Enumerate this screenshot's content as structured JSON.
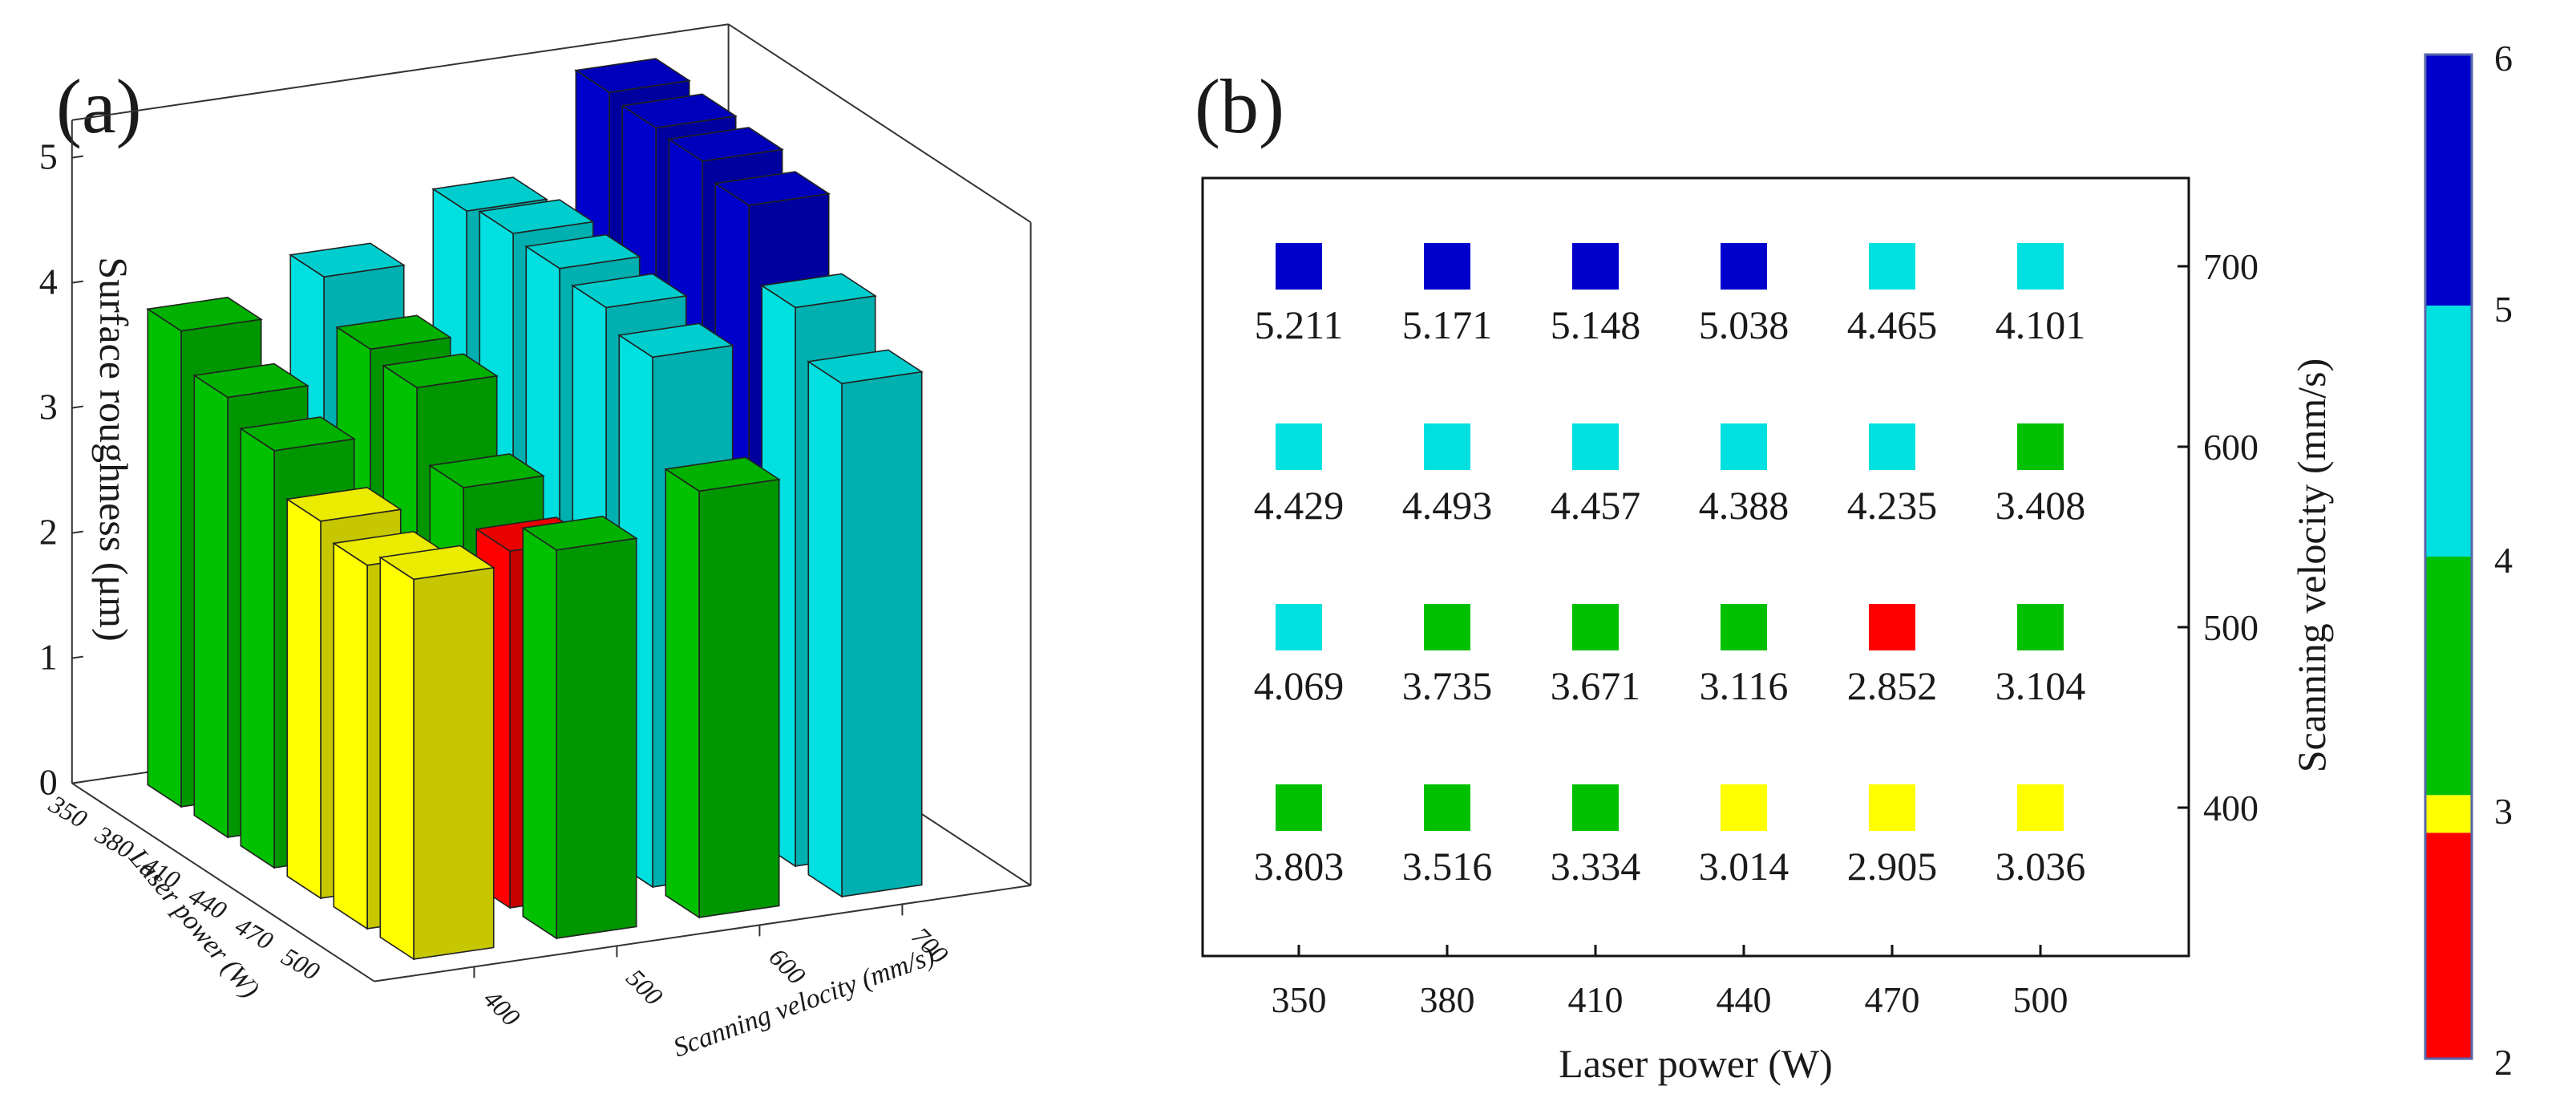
{
  "panel_a_label": "(a)",
  "panel_b_label": "(b)",
  "chart_data": [
    {
      "type": "bar3d",
      "panel": "(a)",
      "zlabel": "Surface roughness (μm)",
      "xlabel": "Laser power (W)",
      "ylabel": "Scanning velocity (mm/s)",
      "zticks": [
        "0",
        "1",
        "2",
        "3",
        "4",
        "5"
      ],
      "zlim": [
        0,
        5.3
      ],
      "laser_power_ticks": [
        "350",
        "380",
        "410",
        "440",
        "470",
        "500"
      ],
      "velocity_ticks": [
        "400",
        "500",
        "600",
        "700"
      ],
      "laser_power": [
        350,
        380,
        410,
        440,
        470,
        500
      ],
      "scanning_velocity": [
        400,
        500,
        600,
        700
      ],
      "values": [
        [
          3.803,
          3.516,
          3.334,
          3.014,
          2.905,
          3.036
        ],
        [
          4.069,
          3.735,
          3.671,
          3.116,
          2.852,
          3.104
        ],
        [
          4.429,
          4.493,
          4.457,
          4.388,
          4.235,
          3.408
        ],
        [
          5.211,
          5.171,
          5.148,
          5.038,
          4.465,
          4.101
        ]
      ]
    },
    {
      "type": "heatmap",
      "panel": "(b)",
      "xlabel": "Laser power (W)",
      "ylabel": "Scanning velocity (mm/s)",
      "x": [
        350,
        380,
        410,
        440,
        470,
        500
      ],
      "x_ticks": [
        "350",
        "380",
        "410",
        "440",
        "470",
        "500"
      ],
      "y": [
        700,
        600,
        500,
        400
      ],
      "y_ticks": [
        "700",
        "600",
        "500",
        "400"
      ],
      "rows": [
        {
          "velocity": 700,
          "values": [
            "5.211",
            "5.171",
            "5.148",
            "5.038",
            "4.465",
            "4.101"
          ]
        },
        {
          "velocity": 600,
          "values": [
            "4.429",
            "4.493",
            "4.457",
            "4.388",
            "4.235",
            "3.408"
          ]
        },
        {
          "velocity": 500,
          "values": [
            "4.069",
            "3.735",
            "3.671",
            "3.116",
            "2.852",
            "3.104"
          ]
        },
        {
          "velocity": 400,
          "values": [
            "3.803",
            "3.516",
            "3.334",
            "3.014",
            "2.905",
            "3.036"
          ]
        }
      ]
    },
    {
      "type": "colorbar",
      "ticks": [
        "2",
        "3",
        "4",
        "5",
        "6"
      ],
      "range": [
        2,
        6
      ],
      "bands": [
        {
          "from": 2,
          "to": 2.9,
          "color": "#ff0000"
        },
        {
          "from": 2.9,
          "to": 3.05,
          "color": "#ffff00"
        },
        {
          "from": 3.05,
          "to": 4.0,
          "color": "#00c000"
        },
        {
          "from": 4.0,
          "to": 5.0,
          "color": "#00e0e0"
        },
        {
          "from": 5.0,
          "to": 6.0,
          "color": "#0000cc"
        }
      ]
    }
  ]
}
